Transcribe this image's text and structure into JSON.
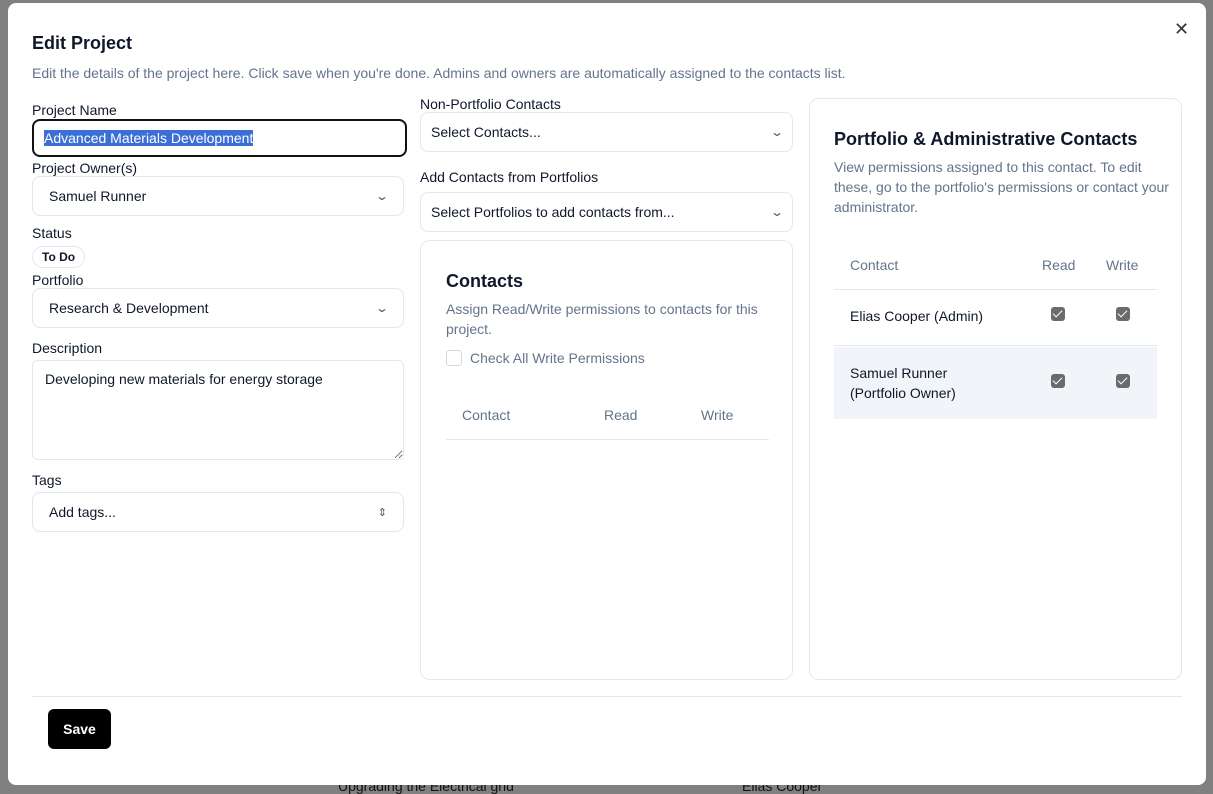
{
  "background": {
    "text1": "Upgrading the Electrical grid",
    "text2": "Elias Cooper"
  },
  "dialog": {
    "title": "Edit Project",
    "description": "Edit the details of the project here. Click save when you're done. Admins and owners are automatically assigned to the contacts list.",
    "close_icon": "close-icon",
    "project_name": {
      "label": "Project Name",
      "value": "Advanced Materials Development"
    },
    "project_owners": {
      "label": "Project Owner(s)",
      "value": "Samuel Runner"
    },
    "status": {
      "label": "Status",
      "value": "To Do"
    },
    "portfolio": {
      "label": "Portfolio",
      "value": "Research & Development"
    },
    "description_field": {
      "label": "Description",
      "value": "Developing new materials for energy storage"
    },
    "tags": {
      "label": "Tags",
      "placeholder": "Add tags..."
    },
    "non_portfolio_contacts": {
      "label": "Non-Portfolio Contacts",
      "placeholder": "Select Contacts..."
    },
    "add_from_portfolios": {
      "label": "Add Contacts from Portfolios",
      "placeholder": "Select Portfolios to add contacts from..."
    },
    "contacts_card": {
      "title": "Contacts",
      "description": "Assign Read/Write permissions to contacts for this project.",
      "check_all_label": "Check All Write Permissions",
      "check_all_checked": false,
      "columns": [
        "Contact",
        "Read",
        "Write"
      ],
      "rows": []
    },
    "admin_card": {
      "title": "Portfolio & Administrative Contacts",
      "description": "View permissions assigned to this contact. To edit these, go to the portfolio's permissions or contact your administrator.",
      "columns": [
        "Contact",
        "Read",
        "Write"
      ],
      "rows": [
        {
          "contact": "Elias Cooper (Admin)",
          "read": true,
          "write": true
        },
        {
          "contact": "Samuel Runner (Portfolio Owner)",
          "read": true,
          "write": true
        }
      ]
    },
    "save_label": "Save"
  }
}
